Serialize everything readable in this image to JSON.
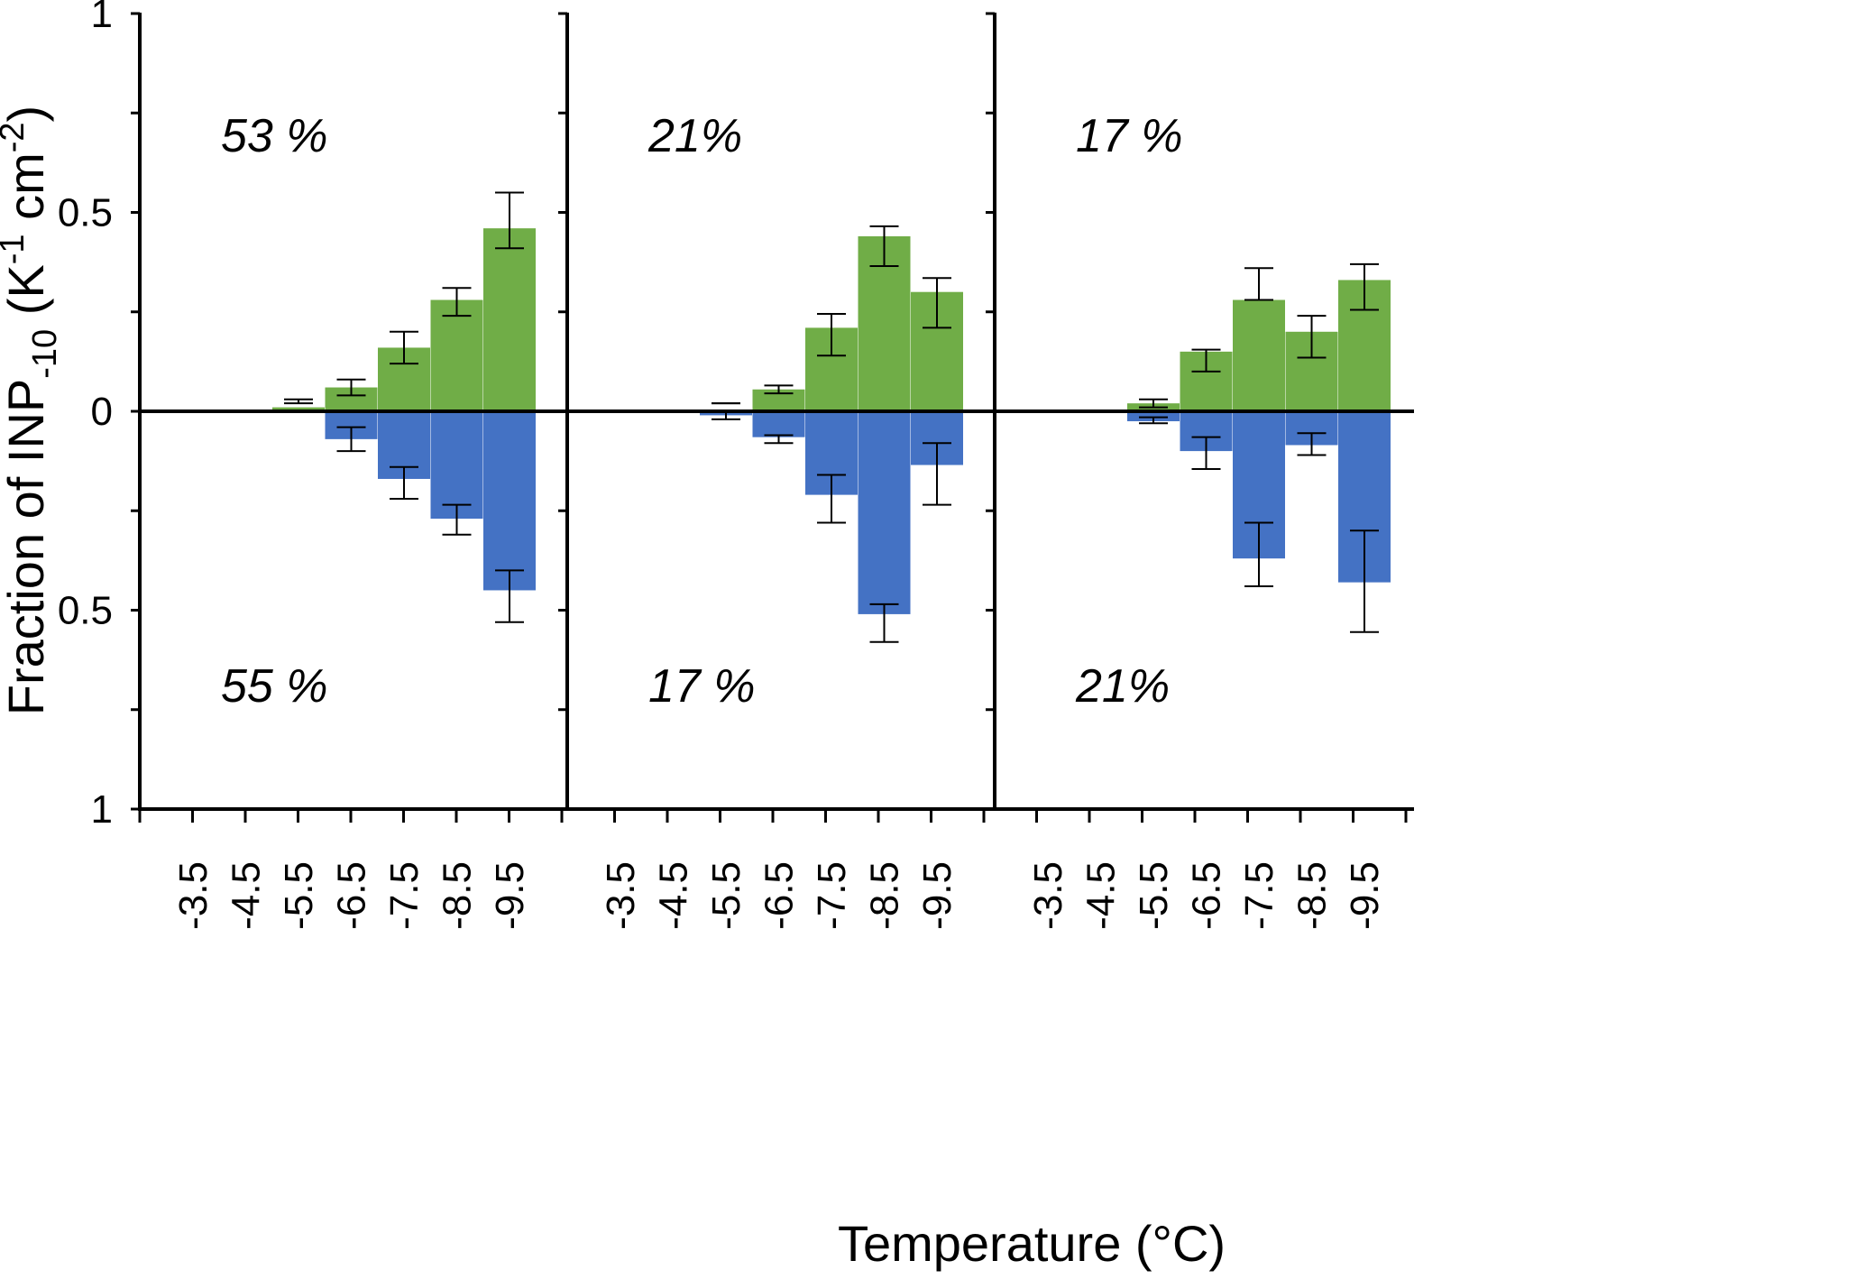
{
  "chart_data": {
    "type": "bar",
    "layout": "three panels sharing axes; positive bars above zero, negative bars drawn downward",
    "xlabel": "Temperature (°C)",
    "ylabel": "Fraction of INP",
    "ylabel_sub": "-10",
    "ylabel_tail_open": " (K",
    "ylabel_sup1": "-1",
    "ylabel_mid": " cm",
    "ylabel_sup2": "-2",
    "ylabel_close": ")",
    "categories": [
      "-3.5",
      "-4.5",
      "-5.5",
      "-6.5",
      "-7.5",
      "-8.5",
      "-9.5"
    ],
    "y_ticks_top": [
      "1",
      "0.5",
      "0"
    ],
    "y_ticks_bottom": [
      "0.5",
      "1"
    ],
    "ylim": [
      -1,
      1
    ],
    "colors": {
      "upper": "#70ad47",
      "lower": "#4472c4",
      "axis": "#000000"
    },
    "panels": [
      {
        "upper_label": "53 %",
        "lower_label": "55 %",
        "upper": [
          {
            "x": "-5.5",
            "value": 0.01,
            "err_low": 0.03,
            "err_high": 0.02
          },
          {
            "x": "-6.5",
            "value": 0.06,
            "err_low": 0.04,
            "err_high": 0.08
          },
          {
            "x": "-7.5",
            "value": 0.16,
            "err_low": 0.12,
            "err_high": 0.2
          },
          {
            "x": "-8.5",
            "value": 0.28,
            "err_low": 0.24,
            "err_high": 0.31
          },
          {
            "x": "-9.5",
            "value": 0.46,
            "err_low": 0.41,
            "err_high": 0.55
          }
        ],
        "lower": [
          {
            "x": "-6.5",
            "value": 0.07,
            "err_low": 0.04,
            "err_high": 0.1
          },
          {
            "x": "-7.5",
            "value": 0.17,
            "err_low": 0.14,
            "err_high": 0.22
          },
          {
            "x": "-8.5",
            "value": 0.27,
            "err_low": 0.235,
            "err_high": 0.31
          },
          {
            "x": "-9.5",
            "value": 0.45,
            "err_low": 0.4,
            "err_high": 0.53
          }
        ]
      },
      {
        "upper_label": "21%",
        "lower_label": "17 %",
        "upper": [
          {
            "x": "-5.5",
            "value": 0.0,
            "err_low": 0.02,
            "err_high": 0.02
          },
          {
            "x": "-6.5",
            "value": 0.055,
            "err_low": 0.045,
            "err_high": 0.065
          },
          {
            "x": "-7.5",
            "value": 0.21,
            "err_low": 0.14,
            "err_high": 0.245
          },
          {
            "x": "-8.5",
            "value": 0.44,
            "err_low": 0.365,
            "err_high": 0.465
          },
          {
            "x": "-9.5",
            "value": 0.3,
            "err_low": 0.21,
            "err_high": 0.335
          }
        ],
        "lower": [
          {
            "x": "-5.5",
            "value": 0.01,
            "err_low": 0.0,
            "err_high": 0.02
          },
          {
            "x": "-6.5",
            "value": 0.065,
            "err_low": 0.06,
            "err_high": 0.08
          },
          {
            "x": "-7.5",
            "value": 0.21,
            "err_low": 0.16,
            "err_high": 0.28
          },
          {
            "x": "-8.5",
            "value": 0.51,
            "err_low": 0.485,
            "err_high": 0.58
          },
          {
            "x": "-9.5",
            "value": 0.135,
            "err_low": 0.08,
            "err_high": 0.235
          }
        ]
      },
      {
        "upper_label": "17 %",
        "lower_label": "21%",
        "upper": [
          {
            "x": "-5.5",
            "value": 0.02,
            "err_low": 0.01,
            "err_high": 0.03
          },
          {
            "x": "-6.5",
            "value": 0.15,
            "err_low": 0.1,
            "err_high": 0.155
          },
          {
            "x": "-7.5",
            "value": 0.28,
            "err_low": 0.28,
            "err_high": 0.36
          },
          {
            "x": "-8.5",
            "value": 0.2,
            "err_low": 0.135,
            "err_high": 0.24
          },
          {
            "x": "-9.5",
            "value": 0.33,
            "err_low": 0.255,
            "err_high": 0.37
          }
        ],
        "lower": [
          {
            "x": "-5.5",
            "value": 0.025,
            "err_low": 0.015,
            "err_high": 0.03
          },
          {
            "x": "-6.5",
            "value": 0.1,
            "err_low": 0.065,
            "err_high": 0.145
          },
          {
            "x": "-7.5",
            "value": 0.37,
            "err_low": 0.28,
            "err_high": 0.44
          },
          {
            "x": "-8.5",
            "value": 0.085,
            "err_low": 0.055,
            "err_high": 0.11
          },
          {
            "x": "-9.5",
            "value": 0.43,
            "err_low": 0.3,
            "err_high": 0.555
          }
        ]
      }
    ]
  }
}
